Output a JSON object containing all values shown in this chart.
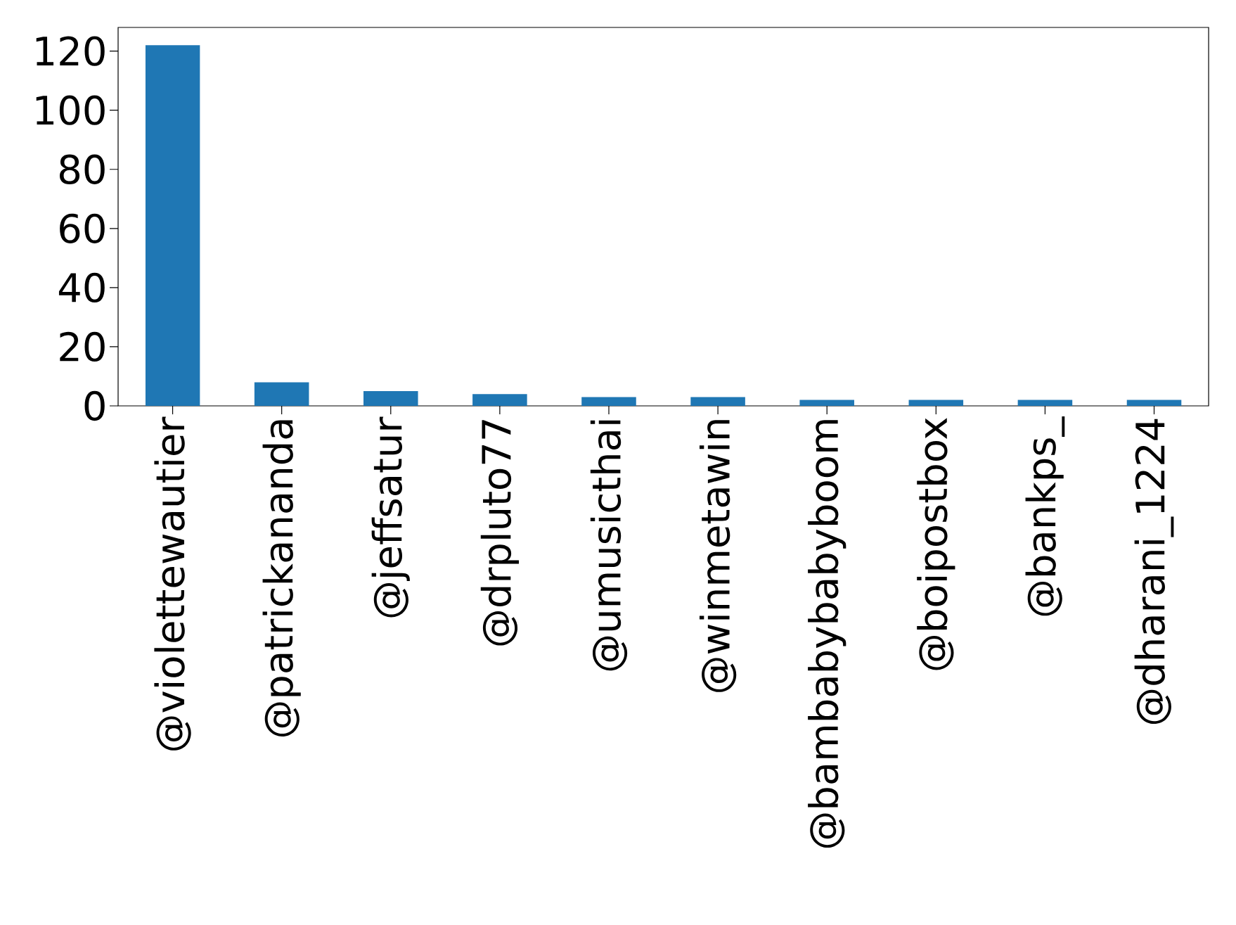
{
  "chart_data": {
    "type": "bar",
    "categories": [
      "@violettewautier",
      "@patrickananda",
      "@jeffsatur",
      "@drpluto77",
      "@umusicthai",
      "@winmetawin",
      "@bambabybabyboom",
      "@boipostbox",
      "@bankps_",
      "@dharani_1224"
    ],
    "values": [
      122,
      8,
      5,
      4,
      3,
      3,
      2,
      2,
      2,
      2
    ],
    "color": "#1f77b4",
    "ylim": [
      0,
      128
    ],
    "yticks": [
      0,
      20,
      40,
      60,
      80,
      100,
      120
    ]
  }
}
